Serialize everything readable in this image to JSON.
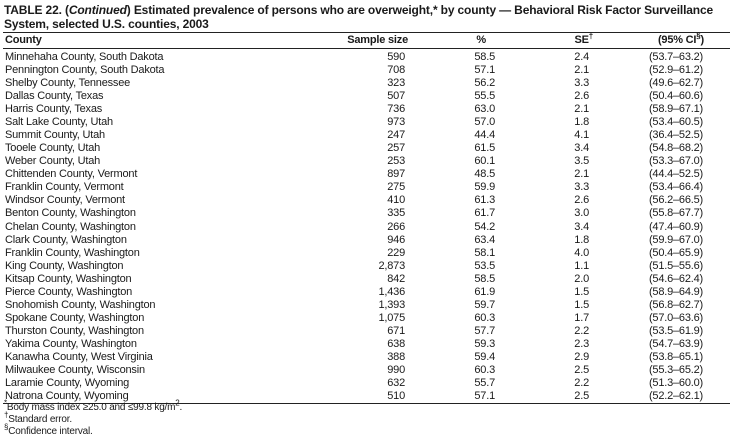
{
  "title": {
    "prefix": "TABLE 22. (",
    "italic": "Continued",
    "rest": ") Estimated prevalence of persons who are overweight,* by county — Behavioral Risk Factor Surveillance System, selected U.S. counties, 2003"
  },
  "columns": {
    "county": "County",
    "sample_size": "Sample size",
    "percent": "%",
    "se": "SE",
    "se_mark": "†",
    "ci_open": "(95% CI",
    "ci_mark": "§",
    "ci_close": ")"
  },
  "rows": [
    [
      "Minnehaha County, South Dakota",
      "590",
      "58.5",
      "2.4",
      "(53.7–63.2)"
    ],
    [
      "Pennington County, South Dakota",
      "708",
      "57.1",
      "2.1",
      "(52.9–61.2)"
    ],
    [
      "Shelby County, Tennessee",
      "323",
      "56.2",
      "3.3",
      "(49.6–62.7)"
    ],
    [
      "Dallas County, Texas",
      "507",
      "55.5",
      "2.6",
      "(50.4–60.6)"
    ],
    [
      "Harris County, Texas",
      "736",
      "63.0",
      "2.1",
      "(58.9–67.1)"
    ],
    [
      "Salt Lake County, Utah",
      "973",
      "57.0",
      "1.8",
      "(53.4–60.5)"
    ],
    [
      "Summit County, Utah",
      "247",
      "44.4",
      "4.1",
      "(36.4–52.5)"
    ],
    [
      "Tooele County, Utah",
      "257",
      "61.5",
      "3.4",
      "(54.8–68.2)"
    ],
    [
      "Weber County, Utah",
      "253",
      "60.1",
      "3.5",
      "(53.3–67.0)"
    ],
    [
      "Chittenden County, Vermont",
      "897",
      "48.5",
      "2.1",
      "(44.4–52.5)"
    ],
    [
      "Franklin County, Vermont",
      "275",
      "59.9",
      "3.3",
      "(53.4–66.4)"
    ],
    [
      "Windsor County, Vermont",
      "410",
      "61.3",
      "2.6",
      "(56.2–66.5)"
    ],
    [
      "Benton County, Washington",
      "335",
      "61.7",
      "3.0",
      "(55.8–67.7)"
    ],
    [
      "Chelan County, Washington",
      "266",
      "54.2",
      "3.4",
      "(47.4–60.9)"
    ],
    [
      "Clark County, Washington",
      "946",
      "63.4",
      "1.8",
      "(59.9–67.0)"
    ],
    [
      "Franklin County, Washington",
      "229",
      "58.1",
      "4.0",
      "(50.4–65.9)"
    ],
    [
      "King County, Washington",
      "2,873",
      "53.5",
      "1.1",
      "(51.5–55.6)"
    ],
    [
      "Kitsap County, Washington",
      "842",
      "58.5",
      "2.0",
      "(54.6–62.4)"
    ],
    [
      "Pierce County, Washington",
      "1,436",
      "61.9",
      "1.5",
      "(58.9–64.9)"
    ],
    [
      "Snohomish County, Washington",
      "1,393",
      "59.7",
      "1.5",
      "(56.8–62.7)"
    ],
    [
      "Spokane County, Washington",
      "1,075",
      "60.3",
      "1.7",
      "(57.0–63.6)"
    ],
    [
      "Thurston County, Washington",
      "671",
      "57.7",
      "2.2",
      "(53.5–61.9)"
    ],
    [
      "Yakima County, Washington",
      "638",
      "59.3",
      "2.3",
      "(54.7–63.9)"
    ],
    [
      "Kanawha County, West Virginia",
      "388",
      "59.4",
      "2.9",
      "(53.8–65.1)"
    ],
    [
      "Milwaukee County, Wisconsin",
      "990",
      "60.3",
      "2.5",
      "(55.3–65.2)"
    ],
    [
      "Laramie County, Wyoming",
      "632",
      "55.7",
      "2.2",
      "(51.3–60.0)"
    ],
    [
      "Natrona County, Wyoming",
      "510",
      "57.1",
      "2.5",
      "(52.2–62.1)"
    ]
  ],
  "footnotes": {
    "bmi_mark": "*",
    "bmi_a": "Body mass index ",
    "bmi_ge": "≥",
    "bmi_b": "25.0 and ",
    "bmi_le": "≤",
    "bmi_c": "99.8 kg/m",
    "bmi_sup": "2",
    "bmi_end": ".",
    "se_mark": "†",
    "se_text": "Standard error.",
    "ci_mark": "§",
    "ci_text": "Confidence interval."
  }
}
